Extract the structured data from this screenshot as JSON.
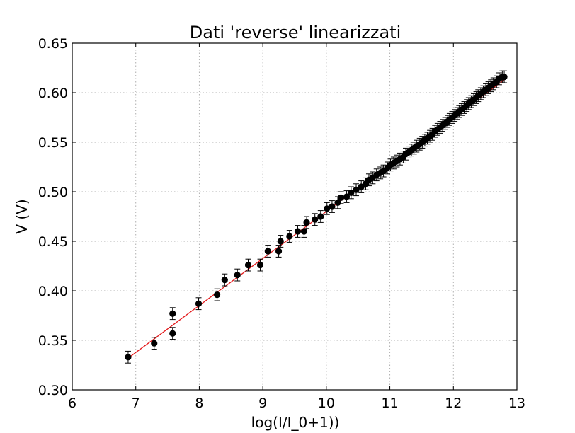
{
  "chart_data": {
    "type": "scatter",
    "title": "Dati 'reverse' linearizzati",
    "xlabel": "log(I/I_0+1))",
    "ylabel": "V (V)",
    "xlim": [
      6,
      13
    ],
    "ylim": [
      0.3,
      0.65
    ],
    "grid": true,
    "x_ticks": [
      6,
      7,
      8,
      9,
      10,
      11,
      12,
      13
    ],
    "x_tick_labels": [
      "6",
      "7",
      "8",
      "9",
      "10",
      "11",
      "12",
      "13"
    ],
    "y_ticks": [
      0.3,
      0.35,
      0.4,
      0.45,
      0.5,
      0.55,
      0.6,
      0.65
    ],
    "y_tick_labels": [
      "0.30",
      "0.35",
      "0.40",
      "0.45",
      "0.50",
      "0.55",
      "0.60",
      "0.65"
    ],
    "colors": {
      "points": "#000000",
      "fit_line": "#e41a1c",
      "grid": "#b0b0b0"
    },
    "error_bar": 0.006,
    "series": [
      {
        "marker": "circle",
        "x": [
          6.88,
          7.29,
          7.58,
          7.58,
          7.99,
          8.28,
          8.4,
          8.6,
          8.77,
          8.96,
          9.08,
          9.25,
          9.28,
          9.42,
          9.55,
          9.65,
          9.69,
          9.82,
          9.91,
          10.01,
          10.09,
          10.18,
          10.23,
          10.32,
          10.39,
          10.47,
          10.55,
          10.62,
          10.67,
          10.73,
          10.79,
          10.85,
          10.9,
          10.96,
          11.01,
          11.06,
          11.11,
          11.16,
          11.21,
          11.25,
          11.3,
          11.34,
          11.38,
          11.42,
          11.47,
          11.51,
          11.55,
          11.59,
          11.63,
          11.67,
          11.71,
          11.75,
          11.79,
          11.83,
          11.87,
          11.91,
          11.94,
          11.98,
          12.02,
          12.06,
          12.09,
          12.13,
          12.17,
          12.21,
          12.24,
          12.28,
          12.32,
          12.36,
          12.39,
          12.43,
          12.47,
          12.51,
          12.55,
          12.59,
          12.63,
          12.68,
          12.72,
          12.77,
          12.8
        ],
        "y": [
          0.333,
          0.347,
          0.377,
          0.357,
          0.387,
          0.396,
          0.411,
          0.416,
          0.426,
          0.426,
          0.44,
          0.44,
          0.45,
          0.455,
          0.46,
          0.46,
          0.469,
          0.472,
          0.475,
          0.483,
          0.485,
          0.489,
          0.494,
          0.495,
          0.499,
          0.502,
          0.505,
          0.508,
          0.512,
          0.514,
          0.517,
          0.519,
          0.521,
          0.524,
          0.527,
          0.529,
          0.531,
          0.533,
          0.535,
          0.538,
          0.54,
          0.542,
          0.544,
          0.546,
          0.548,
          0.55,
          0.552,
          0.554,
          0.556,
          0.558,
          0.561,
          0.563,
          0.565,
          0.567,
          0.569,
          0.571,
          0.573,
          0.575,
          0.577,
          0.579,
          0.581,
          0.583,
          0.585,
          0.587,
          0.589,
          0.591,
          0.593,
          0.595,
          0.597,
          0.599,
          0.601,
          0.603,
          0.605,
          0.607,
          0.609,
          0.611,
          0.614,
          0.616,
          0.616
        ]
      }
    ],
    "fit_line": {
      "x": [
        6.88,
        12.8
      ],
      "y": [
        0.332,
        0.613
      ]
    }
  }
}
